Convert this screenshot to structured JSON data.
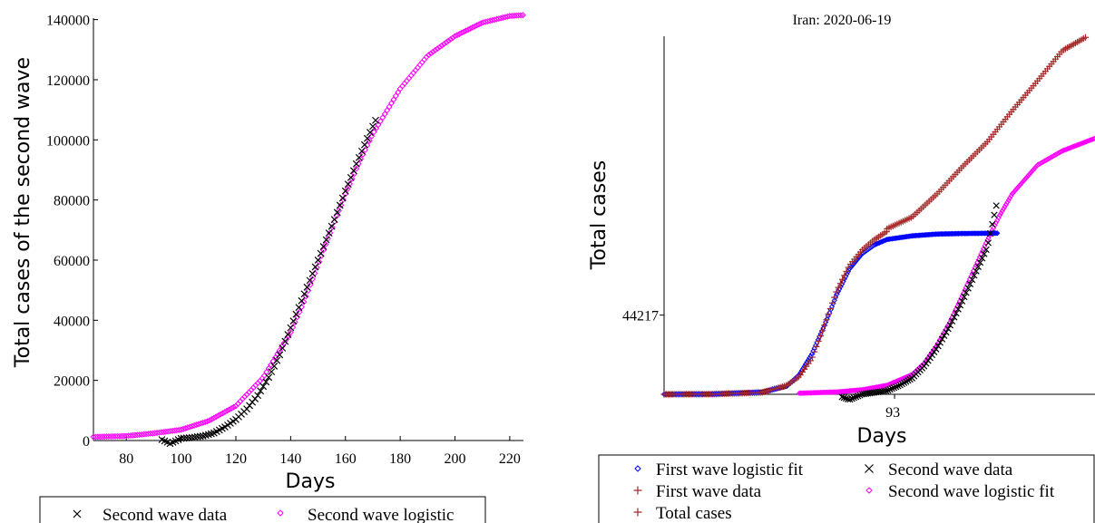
{
  "colors": {
    "first_fit": "#0000ff",
    "first_data": "#a52a2a",
    "second_data": "#000000",
    "second_fit": "#ff00ff",
    "total": "#a52a2a"
  },
  "chart_data": [
    {
      "type": "scatter",
      "title": "",
      "xlabel": "Days",
      "ylabel": "Total cases of the second wave",
      "xlim": [
        68,
        225
      ],
      "ylim": [
        0,
        142000
      ],
      "xticks": [
        "80",
        "100",
        "120",
        "140",
        "160",
        "180",
        "200",
        "220"
      ],
      "yticks": [
        "0",
        "20000",
        "40000",
        "60000",
        "80000",
        "100000",
        "120000",
        "140000"
      ],
      "legend_position": "bottom",
      "series": [
        {
          "name": "Second wave data",
          "marker": "x",
          "x": [
            93,
            96,
            100,
            104,
            108,
            112,
            116,
            120,
            124,
            128,
            132,
            136,
            140,
            144,
            148,
            152,
            156,
            160,
            164,
            168,
            171
          ],
          "y": [
            300,
            -1000,
            700,
            1000,
            1500,
            2500,
            4500,
            7000,
            10500,
            15000,
            21000,
            28500,
            37500,
            46500,
            55500,
            64500,
            73500,
            83000,
            92000,
            100500,
            106500
          ]
        },
        {
          "name": "Second wave logistic",
          "marker": "diamond",
          "x": [
            68,
            80,
            90,
            100,
            110,
            120,
            130,
            140,
            145,
            150,
            155,
            160,
            165,
            170,
            180,
            190,
            200,
            210,
            220,
            225
          ],
          "y": [
            1200,
            1500,
            2400,
            3600,
            6500,
            11500,
            21000,
            36000,
            46500,
            58500,
            70500,
            82000,
            92500,
            102000,
            117000,
            128000,
            134500,
            139000,
            141200,
            141500
          ]
        }
      ]
    },
    {
      "type": "scatter",
      "title": "Iran: 2020-06-19",
      "xlabel": "Days",
      "ylabel": "Total cases",
      "xlim": [
        1,
        173
      ],
      "ylim": [
        0,
        200000
      ],
      "xticks": [
        "93"
      ],
      "yticks": [
        "44217"
      ],
      "legend_position": "bottom",
      "series": [
        {
          "name": "First wave logistic fit",
          "marker": "diamond",
          "x": [
            1,
            20,
            40,
            50,
            55,
            60,
            65,
            70,
            75,
            80,
            85,
            90,
            100,
            110,
            120,
            134
          ],
          "y": [
            0,
            100,
            1200,
            4500,
            11000,
            22500,
            38500,
            56000,
            70000,
            78500,
            83500,
            86500,
            88500,
            89500,
            89800,
            90000
          ]
        },
        {
          "name": "First wave data",
          "marker": "plus",
          "x": [
            1,
            20,
            40,
            50,
            55,
            60,
            65,
            70,
            75,
            80,
            85,
            90
          ],
          "y": [
            0,
            100,
            1000,
            5000,
            10000,
            20000,
            38500,
            58000,
            72000,
            80500,
            86500,
            91000
          ]
        },
        {
          "name": "Second wave data",
          "marker": "x",
          "x": [
            72,
            75,
            80,
            85,
            90,
            95,
            100,
            105,
            110,
            115,
            120,
            125,
            130,
            134
          ],
          "y": [
            -1500,
            -3000,
            0,
            1000,
            2000,
            5000,
            9000,
            16000,
            26000,
            38000,
            52000,
            67000,
            82000,
            108000
          ]
        },
        {
          "name": "Second wave logistic fit",
          "marker": "diamond",
          "x": [
            55,
            70,
            80,
            90,
            100,
            105,
            110,
            115,
            120,
            125,
            130,
            135,
            140,
            150,
            160,
            173
          ],
          "y": [
            600,
            1300,
            2500,
            5000,
            11000,
            17500,
            27500,
            40000,
            55000,
            70500,
            86000,
            100000,
            112000,
            128000,
            136000,
            143000
          ]
        },
        {
          "name": "Total cases",
          "marker": "plus",
          "x": [
            90,
            100,
            110,
            120,
            130,
            140,
            150,
            160,
            170
          ],
          "y": [
            92500,
            99000,
            112000,
            127000,
            141000,
            158500,
            175000,
            192000,
            200000
          ]
        }
      ]
    }
  ],
  "legends": [
    {
      "entries": [
        "Second wave data",
        "Second wave logistic"
      ]
    },
    {
      "entries": [
        "First wave logistic fit",
        "Second wave data",
        "First wave data",
        "Second wave logistic fit",
        "Total cases"
      ]
    }
  ]
}
